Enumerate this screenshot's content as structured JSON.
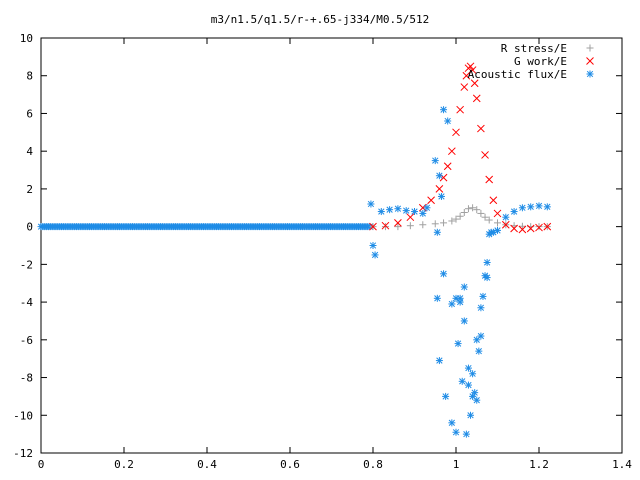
{
  "chart_data": {
    "type": "scatter",
    "title": "m3/n1.5/q1.5/r-+.65-j334/M0.5/512",
    "xlabel": "",
    "ylabel": "",
    "xlim": [
      0,
      1.4
    ],
    "ylim": [
      -12,
      10
    ],
    "x_ticks": [
      "0",
      "0.2",
      "0.4",
      "0.6",
      "0.8",
      "1",
      "1.2",
      "1.4"
    ],
    "y_ticks": [
      "10",
      "8",
      "6",
      "4",
      "2",
      "0",
      "-2",
      "-4",
      "-6",
      "-8",
      "-10",
      "-12"
    ],
    "grid": false,
    "legend_position": "top-right",
    "series": [
      {
        "name": "R stress/E",
        "marker": "plus",
        "color": "#a0a0a0",
        "x": [
          0.8,
          0.83,
          0.86,
          0.89,
          0.92,
          0.95,
          0.97,
          0.99,
          1.0,
          1.01,
          1.02,
          1.03,
          1.04,
          1.05,
          1.06,
          1.07,
          1.08,
          1.1,
          1.12,
          1.14,
          1.16,
          1.18,
          1.2,
          1.22
        ],
        "y": [
          0.0,
          0.0,
          0.0,
          0.05,
          0.1,
          0.15,
          0.2,
          0.3,
          0.4,
          0.55,
          0.75,
          0.95,
          1.0,
          0.9,
          0.7,
          0.5,
          0.35,
          0.2,
          0.1,
          0.05,
          0.02,
          0.0,
          0.0,
          0.0
        ]
      },
      {
        "name": "G work/E",
        "marker": "x",
        "color": "#ff0000",
        "x": [
          0.8,
          0.83,
          0.86,
          0.89,
          0.92,
          0.94,
          0.96,
          0.97,
          0.98,
          0.99,
          1.0,
          1.01,
          1.02,
          1.025,
          1.03,
          1.035,
          1.04,
          1.045,
          1.05,
          1.06,
          1.07,
          1.08,
          1.09,
          1.1,
          1.12,
          1.14,
          1.16,
          1.18,
          1.2,
          1.22
        ],
        "y": [
          0.0,
          0.05,
          0.2,
          0.5,
          1.0,
          1.4,
          2.0,
          2.6,
          3.2,
          4.0,
          5.0,
          6.2,
          7.4,
          8.0,
          8.4,
          8.5,
          8.3,
          7.6,
          6.8,
          5.2,
          3.8,
          2.5,
          1.4,
          0.7,
          0.1,
          -0.1,
          -0.15,
          -0.1,
          -0.05,
          0.0
        ]
      },
      {
        "name": "Acoustic flux/E",
        "marker": "star",
        "color": "#1f8ce6",
        "x": [
          0.795,
          0.8,
          0.805,
          0.82,
          0.84,
          0.86,
          0.88,
          0.9,
          0.92,
          0.93,
          0.95,
          0.96,
          0.965,
          0.97,
          0.98,
          0.99,
          1.0,
          1.01,
          1.02,
          1.03,
          1.04,
          1.05,
          1.06,
          1.07,
          1.08,
          1.09,
          1.1,
          1.12,
          1.14,
          1.16,
          1.18,
          1.2,
          1.22,
          0.955,
          0.97,
          0.975,
          0.99,
          1.005,
          1.015,
          1.025,
          1.035,
          1.045,
          1.055,
          1.065,
          1.075,
          1.0,
          1.01,
          1.02,
          1.03,
          1.04,
          1.05,
          1.06,
          1.075,
          1.085,
          0.955,
          0.96
        ],
        "y": [
          1.2,
          -1.0,
          -1.5,
          0.8,
          0.9,
          0.95,
          0.85,
          0.8,
          0.7,
          1.0,
          3.5,
          2.7,
          1.6,
          6.2,
          5.6,
          -4.1,
          -3.8,
          -3.8,
          -5.0,
          -7.5,
          -9.0,
          -9.2,
          -5.8,
          -2.6,
          -0.4,
          -0.3,
          -0.2,
          0.5,
          0.8,
          1.0,
          1.05,
          1.1,
          1.05,
          -3.8,
          -2.5,
          -9.0,
          -10.4,
          -6.2,
          -8.2,
          -11.0,
          -10.0,
          -8.8,
          -6.6,
          -3.7,
          -2.7,
          -10.9,
          -4.0,
          -3.2,
          -8.4,
          -7.8,
          -6.0,
          -4.3,
          -1.9,
          -0.3,
          -0.3,
          -7.1
        ]
      }
    ]
  }
}
